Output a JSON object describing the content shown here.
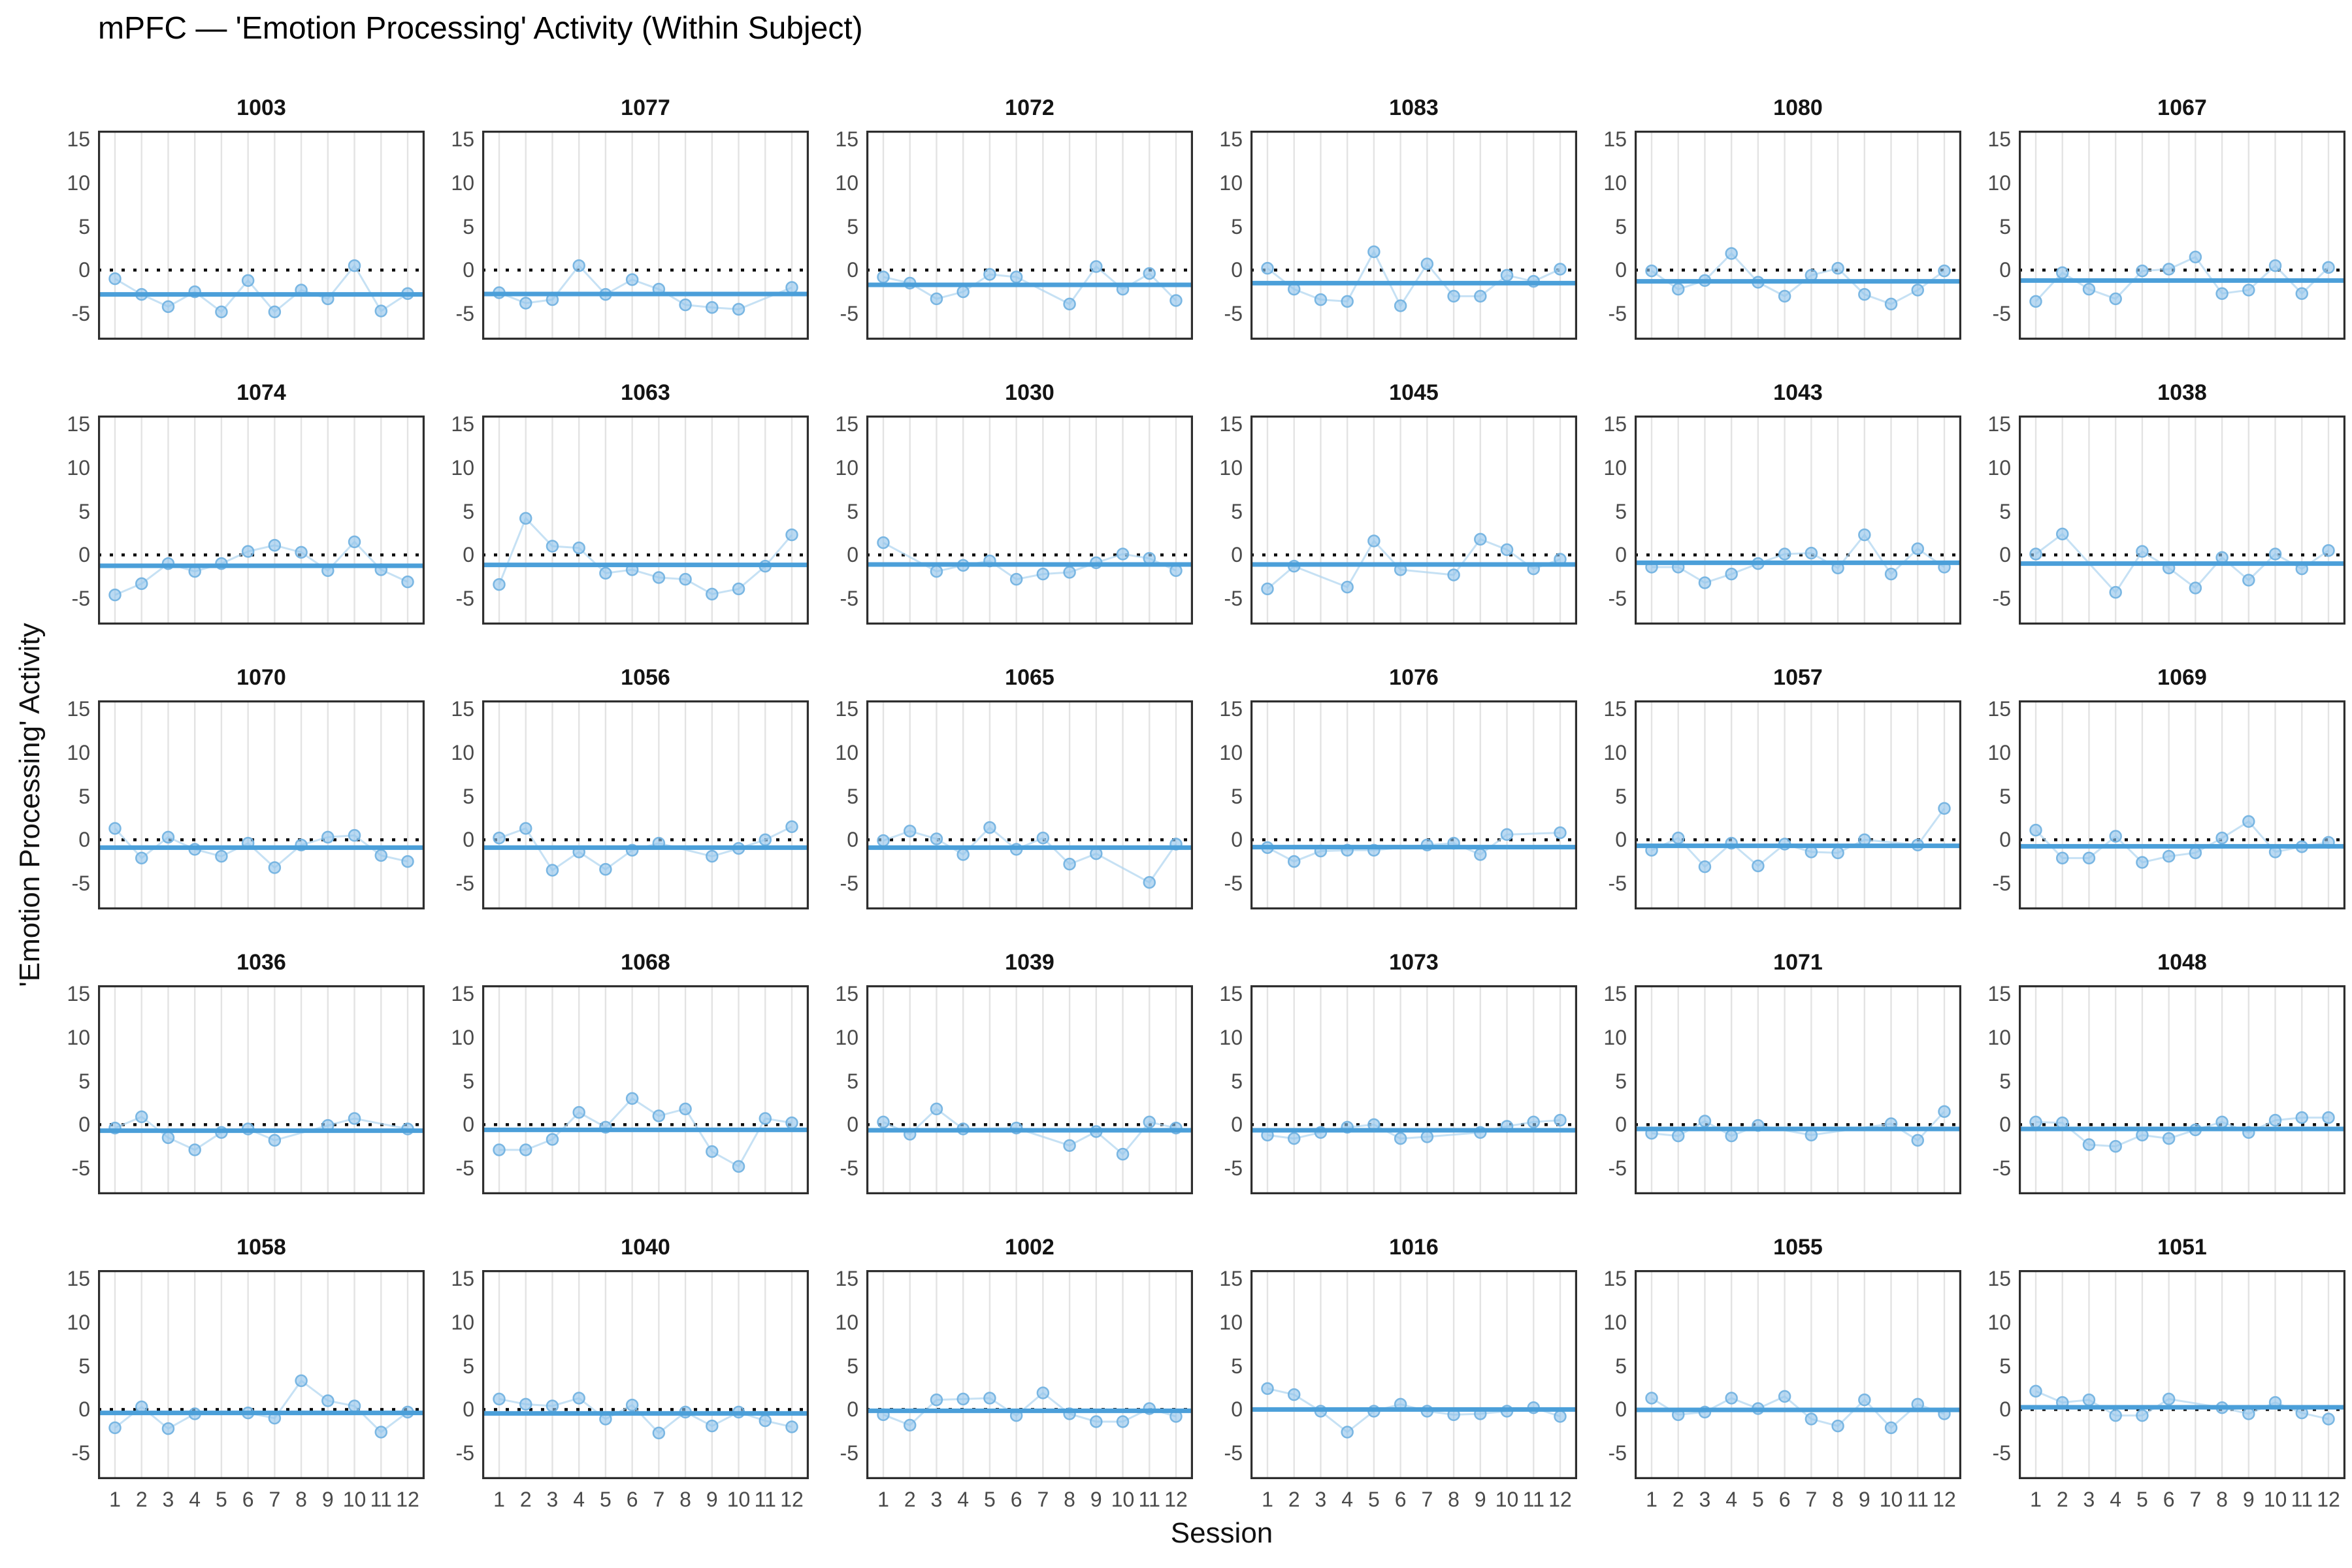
{
  "chart_data": {
    "type": "scatter",
    "subtype": "faceted-small-multiples-with-lines",
    "title": "mPFC — 'Emotion Processing' Activity (Within Subject)",
    "xlabel": "Session",
    "ylabel": "'Emotion Processing' Activity",
    "x": [
      1,
      2,
      3,
      4,
      5,
      6,
      7,
      8,
      9,
      10,
      11,
      12
    ],
    "xtick_labels": [
      "1",
      "2",
      "3",
      "4",
      "5",
      "6",
      "7",
      "8",
      "9",
      "10",
      "11",
      "12"
    ],
    "ytick_values": [
      15,
      10,
      5,
      0,
      -5
    ],
    "ytick_labels": [
      "15",
      "10",
      "5",
      "0",
      "-5"
    ],
    "ylim": [
      -8,
      16
    ],
    "grid": "vertical-only",
    "legend": "none",
    "reference_line_y": 0,
    "facet_rows": 5,
    "facet_cols": 6,
    "colors": {
      "point_fill": "#8fc4ec",
      "point_stroke": "#6fb0e0",
      "series_line": "#aed4f0",
      "mean_line": "#4b9fd9",
      "zero_line": "#0a0a0a",
      "gridline": "#e3e3e3",
      "panel_border": "#2e2e2e",
      "tick_text": "#4a4a4a"
    },
    "facets": [
      {
        "id": "1003",
        "mean": -2.8,
        "values": [
          -1.0,
          -2.8,
          -4.2,
          -2.5,
          -4.8,
          -1.2,
          -4.8,
          -2.3,
          -3.3,
          0.5,
          -4.7,
          -2.7
        ]
      },
      {
        "id": "1077",
        "mean": -2.75,
        "values": [
          -2.6,
          -3.8,
          -3.4,
          0.5,
          -2.8,
          -1.1,
          -2.2,
          -4.0,
          -4.3,
          -4.5,
          null,
          -2.0
        ]
      },
      {
        "id": "1072",
        "mean": -1.7,
        "values": [
          -0.8,
          -1.5,
          -3.3,
          -2.5,
          -0.5,
          -0.8,
          null,
          -3.9,
          0.4,
          -2.2,
          -0.4,
          -3.5
        ]
      },
      {
        "id": "1083",
        "mean": -1.5,
        "values": [
          0.2,
          -2.2,
          -3.4,
          -3.6,
          2.1,
          -4.1,
          0.7,
          -3.0,
          -3.0,
          -0.6,
          -1.3,
          0.1
        ]
      },
      {
        "id": "1080",
        "mean": -1.3,
        "values": [
          -0.1,
          -2.2,
          -1.2,
          1.9,
          -1.4,
          -3.0,
          -0.6,
          0.2,
          -2.8,
          -3.9,
          -2.3,
          -0.1
        ]
      },
      {
        "id": "1067",
        "mean": -1.2,
        "values": [
          -3.6,
          -0.3,
          -2.2,
          -3.3,
          -0.1,
          0.1,
          1.5,
          -2.7,
          -2.3,
          0.5,
          -2.7,
          0.3
        ]
      },
      {
        "id": "1074",
        "mean": -1.25,
        "values": [
          -4.6,
          -3.3,
          -1.0,
          -1.9,
          -1.0,
          0.4,
          1.1,
          0.3,
          -1.8,
          1.5,
          -1.7,
          -3.1
        ]
      },
      {
        "id": "1063",
        "mean": -1.15,
        "values": [
          -3.4,
          4.2,
          1.0,
          0.8,
          -2.1,
          -1.7,
          -2.6,
          -2.8,
          -4.5,
          -3.9,
          -1.3,
          2.3
        ]
      },
      {
        "id": "1030",
        "mean": -1.1,
        "values": [
          1.4,
          null,
          -1.9,
          -1.2,
          -0.7,
          -2.8,
          -2.2,
          -2.0,
          -0.9,
          0.1,
          -0.4,
          -1.8
        ]
      },
      {
        "id": "1045",
        "mean": -1.1,
        "values": [
          -3.9,
          -1.3,
          null,
          -3.7,
          1.6,
          -1.7,
          null,
          -2.3,
          1.8,
          0.6,
          -1.6,
          -0.5
        ]
      },
      {
        "id": "1043",
        "mean": -0.9,
        "values": [
          -1.4,
          -1.4,
          -3.2,
          -2.2,
          -1.0,
          0.1,
          0.2,
          -1.5,
          2.3,
          -2.2,
          0.7,
          -1.4
        ]
      },
      {
        "id": "1038",
        "mean": -1.0,
        "values": [
          0.1,
          2.4,
          null,
          -4.3,
          0.4,
          -1.5,
          -3.8,
          -0.3,
          -2.9,
          0.1,
          -1.6,
          0.5
        ]
      },
      {
        "id": "1070",
        "mean": -0.9,
        "values": [
          1.3,
          -2.1,
          0.3,
          -1.1,
          -1.9,
          -0.4,
          -3.2,
          -0.6,
          0.3,
          0.5,
          -1.8,
          -2.5
        ]
      },
      {
        "id": "1056",
        "mean": -0.9,
        "values": [
          0.2,
          1.3,
          -3.5,
          -1.4,
          -3.4,
          -1.2,
          -0.4,
          null,
          -1.9,
          -1.0,
          0.0,
          1.5
        ]
      },
      {
        "id": "1065",
        "mean": -0.9,
        "values": [
          -0.1,
          1.0,
          0.1,
          -1.7,
          1.4,
          -1.1,
          0.2,
          -2.8,
          -1.6,
          null,
          -4.9,
          -0.5
        ]
      },
      {
        "id": "1076",
        "mean": -0.85,
        "values": [
          -0.9,
          -2.5,
          -1.3,
          -1.2,
          -1.2,
          null,
          -0.6,
          -0.4,
          -1.7,
          0.6,
          null,
          0.8
        ]
      },
      {
        "id": "1057",
        "mean": -0.7,
        "values": [
          -1.2,
          0.2,
          -3.1,
          -0.4,
          -3.0,
          -0.5,
          -1.4,
          -1.5,
          0.0,
          null,
          -0.6,
          3.6
        ]
      },
      {
        "id": "1069",
        "mean": -0.75,
        "values": [
          1.1,
          -2.1,
          -2.1,
          0.4,
          -2.6,
          -1.9,
          -1.5,
          0.2,
          2.1,
          -1.4,
          -0.8,
          -0.3
        ]
      },
      {
        "id": "1036",
        "mean": -0.7,
        "values": [
          -0.4,
          0.9,
          -1.5,
          -2.9,
          -0.9,
          -0.5,
          -1.8,
          null,
          -0.1,
          0.7,
          null,
          -0.5
        ]
      },
      {
        "id": "1068",
        "mean": -0.6,
        "values": [
          -2.9,
          -2.9,
          -1.7,
          1.4,
          -0.3,
          3.0,
          1.0,
          1.8,
          -3.1,
          -4.8,
          0.7,
          0.2
        ]
      },
      {
        "id": "1039",
        "mean": -0.65,
        "values": [
          0.3,
          -1.1,
          1.8,
          -0.5,
          null,
          -0.4,
          null,
          -2.4,
          -0.8,
          -3.4,
          0.3,
          -0.4
        ]
      },
      {
        "id": "1073",
        "mean": -0.65,
        "values": [
          -1.2,
          -1.6,
          -0.9,
          -0.3,
          0.0,
          -1.6,
          -1.4,
          null,
          -0.9,
          -0.2,
          0.3,
          0.5
        ]
      },
      {
        "id": "1071",
        "mean": -0.5,
        "values": [
          -1.0,
          -1.3,
          0.4,
          -1.3,
          -0.1,
          null,
          -1.2,
          null,
          null,
          0.1,
          -1.8,
          1.5
        ]
      },
      {
        "id": "1048",
        "mean": -0.5,
        "values": [
          0.3,
          0.2,
          -2.3,
          -2.5,
          -1.2,
          -1.6,
          -0.6,
          0.3,
          -0.9,
          0.5,
          0.8,
          0.8
        ]
      },
      {
        "id": "1058",
        "mean": -0.4,
        "values": [
          -2.1,
          0.3,
          -2.2,
          -0.5,
          null,
          -0.4,
          -1.0,
          3.3,
          1.0,
          0.4,
          -2.6,
          -0.3
        ]
      },
      {
        "id": "1040",
        "mean": -0.45,
        "values": [
          1.2,
          0.6,
          0.4,
          1.3,
          -1.1,
          0.5,
          -2.7,
          -0.3,
          -1.9,
          -0.3,
          -1.3,
          -2.0
        ]
      },
      {
        "id": "1002",
        "mean": -0.15,
        "values": [
          -0.6,
          -1.8,
          1.1,
          1.2,
          1.3,
          -0.7,
          1.9,
          -0.5,
          -1.4,
          -1.4,
          0.1,
          -0.8
        ]
      },
      {
        "id": "1016",
        "mean": 0.0,
        "values": [
          2.4,
          1.7,
          -0.2,
          -2.6,
          -0.2,
          0.6,
          -0.2,
          -0.6,
          -0.5,
          -0.2,
          0.2,
          -0.8
        ]
      },
      {
        "id": "1055",
        "mean": -0.05,
        "values": [
          1.3,
          -0.6,
          -0.3,
          1.3,
          0.1,
          1.5,
          -1.1,
          -1.9,
          1.1,
          -2.1,
          0.6,
          -0.5
        ]
      },
      {
        "id": "1051",
        "mean": 0.25,
        "values": [
          2.1,
          0.8,
          1.1,
          -0.7,
          -0.7,
          1.2,
          null,
          0.2,
          -0.5,
          0.8,
          -0.4,
          -1.1
        ]
      }
    ]
  }
}
